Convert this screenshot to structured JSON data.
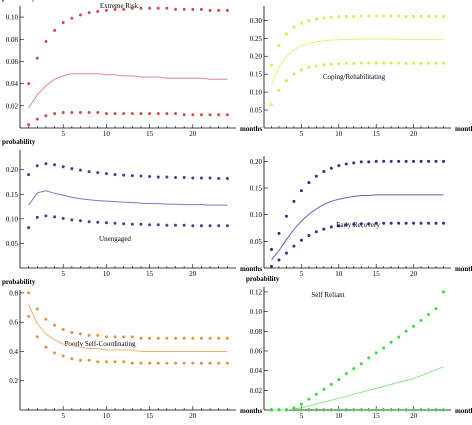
{
  "chart_data": [
    {
      "type": "scatter",
      "title": "Extreme Risk",
      "ylabel": "probability",
      "xlabel": "months",
      "xlim": [
        0,
        25
      ],
      "ylim": [
        0,
        0.11
      ],
      "xticks": [
        5,
        10,
        15,
        20
      ],
      "yticks": [
        0.02,
        0.04,
        0.06,
        0.08,
        0.1
      ],
      "ytick_labels": [
        "0.02",
        "0.04",
        "0.06",
        "0.08",
        "0.10"
      ],
      "color": "#d84a4a",
      "line_color": "#e08888",
      "x": [
        1,
        2,
        3,
        4,
        5,
        6,
        7,
        8,
        9,
        10,
        11,
        12,
        13,
        14,
        15,
        16,
        17,
        18,
        19,
        20,
        21,
        22,
        23,
        24
      ],
      "upper": [
        0.04,
        0.063,
        0.078,
        0.088,
        0.095,
        0.099,
        0.102,
        0.104,
        0.105,
        0.106,
        0.107,
        0.107,
        0.108,
        0.108,
        0.108,
        0.108,
        0.108,
        0.107,
        0.107,
        0.107,
        0.107,
        0.106,
        0.106,
        0.106
      ],
      "mean": [
        0.018,
        0.03,
        0.038,
        0.044,
        0.047,
        0.049,
        0.049,
        0.049,
        0.049,
        0.048,
        0.048,
        0.047,
        0.047,
        0.046,
        0.046,
        0.046,
        0.045,
        0.045,
        0.045,
        0.045,
        0.045,
        0.044,
        0.044,
        0.044
      ],
      "lower": [
        0.003,
        0.008,
        0.011,
        0.013,
        0.014,
        0.014,
        0.014,
        0.014,
        0.014,
        0.013,
        0.013,
        0.013,
        0.013,
        0.013,
        0.013,
        0.013,
        0.013,
        0.013,
        0.012,
        0.012,
        0.012,
        0.012,
        0.012,
        0.012
      ]
    },
    {
      "type": "scatter",
      "title": "Coping/Rehabilitating",
      "ylabel": "",
      "xlabel": "months",
      "xlim": [
        0,
        25
      ],
      "ylim": [
        0,
        0.34
      ],
      "xticks": [
        5,
        10,
        15,
        20
      ],
      "yticks": [
        0.05,
        0.1,
        0.15,
        0.2,
        0.25,
        0.3
      ],
      "ytick_labels": [
        "0.05",
        "0.10",
        "0.15",
        "0.20",
        "0.25",
        "0.30"
      ],
      "color": "#ebe34a",
      "line_color": "#f0ea70",
      "x": [
        1,
        2,
        3,
        4,
        5,
        6,
        7,
        8,
        9,
        10,
        11,
        12,
        13,
        14,
        15,
        16,
        17,
        18,
        19,
        20,
        21,
        22,
        23,
        24
      ],
      "upper": [
        0.175,
        0.23,
        0.262,
        0.281,
        0.292,
        0.299,
        0.304,
        0.307,
        0.309,
        0.31,
        0.311,
        0.311,
        0.312,
        0.312,
        0.312,
        0.312,
        0.312,
        0.312,
        0.311,
        0.311,
        0.311,
        0.311,
        0.311,
        0.311
      ],
      "mean": [
        0.12,
        0.17,
        0.2,
        0.218,
        0.229,
        0.236,
        0.24,
        0.243,
        0.245,
        0.246,
        0.247,
        0.247,
        0.248,
        0.248,
        0.248,
        0.248,
        0.248,
        0.247,
        0.247,
        0.247,
        0.247,
        0.247,
        0.247,
        0.247
      ],
      "lower": [
        0.065,
        0.105,
        0.132,
        0.15,
        0.162,
        0.169,
        0.173,
        0.176,
        0.178,
        0.179,
        0.18,
        0.18,
        0.181,
        0.181,
        0.181,
        0.181,
        0.181,
        0.181,
        0.18,
        0.18,
        0.18,
        0.18,
        0.18,
        0.18
      ]
    },
    {
      "type": "scatter",
      "title": "Unengaged",
      "ylabel": "probability",
      "xlabel": "months",
      "xlim": [
        0,
        25
      ],
      "ylim": [
        0,
        0.24
      ],
      "xticks": [
        5,
        10,
        15,
        20
      ],
      "yticks": [
        0.05,
        0.1,
        0.15,
        0.2
      ],
      "ytick_labels": [
        "0.05",
        "0.10",
        "0.15",
        "0.20"
      ],
      "color": "#4a3a9a",
      "line_color": "#8a6ec8",
      "x": [
        1,
        2,
        3,
        4,
        5,
        6,
        7,
        8,
        9,
        10,
        11,
        12,
        13,
        14,
        15,
        16,
        17,
        18,
        19,
        20,
        21,
        22,
        23,
        24
      ],
      "upper": [
        0.19,
        0.208,
        0.212,
        0.21,
        0.206,
        0.202,
        0.199,
        0.196,
        0.194,
        0.192,
        0.19,
        0.189,
        0.188,
        0.187,
        0.186,
        0.185,
        0.185,
        0.184,
        0.184,
        0.183,
        0.183,
        0.183,
        0.182,
        0.182
      ],
      "mean": [
        0.128,
        0.153,
        0.157,
        0.152,
        0.148,
        0.144,
        0.141,
        0.139,
        0.137,
        0.136,
        0.135,
        0.134,
        0.133,
        0.132,
        0.131,
        0.131,
        0.13,
        0.13,
        0.129,
        0.129,
        0.129,
        0.128,
        0.128,
        0.128
      ],
      "lower": [
        0.082,
        0.103,
        0.106,
        0.104,
        0.101,
        0.098,
        0.096,
        0.094,
        0.093,
        0.092,
        0.091,
        0.09,
        0.089,
        0.089,
        0.088,
        0.088,
        0.087,
        0.087,
        0.087,
        0.086,
        0.086,
        0.086,
        0.086,
        0.086
      ]
    },
    {
      "type": "scatter",
      "title": "Early Recovery",
      "ylabel": "",
      "xlabel": "months",
      "xlim": [
        0,
        25
      ],
      "ylim": [
        0,
        0.21
      ],
      "xticks": [
        5,
        10,
        15,
        20
      ],
      "yticks": [
        0.05,
        0.1,
        0.15,
        0.2
      ],
      "ytick_labels": [
        "0.05",
        "0.10",
        "0.15",
        "0.20"
      ],
      "color": "#2e2e8a",
      "line_color": "#6a5ec0",
      "x": [
        1,
        2,
        3,
        4,
        5,
        6,
        7,
        8,
        9,
        10,
        11,
        12,
        13,
        14,
        15,
        16,
        17,
        18,
        19,
        20,
        21,
        22,
        23,
        24
      ],
      "upper": [
        0.035,
        0.065,
        0.097,
        0.125,
        0.145,
        0.16,
        0.172,
        0.181,
        0.187,
        0.192,
        0.195,
        0.197,
        0.199,
        0.199,
        0.2,
        0.2,
        0.2,
        0.2,
        0.2,
        0.2,
        0.2,
        0.2,
        0.2,
        0.2
      ],
      "mean": [
        0.015,
        0.033,
        0.053,
        0.072,
        0.088,
        0.101,
        0.111,
        0.119,
        0.125,
        0.129,
        0.132,
        0.134,
        0.136,
        0.136,
        0.137,
        0.137,
        0.137,
        0.137,
        0.137,
        0.137,
        0.137,
        0.137,
        0.137,
        0.137
      ],
      "lower": [
        0.003,
        0.015,
        0.028,
        0.041,
        0.052,
        0.061,
        0.068,
        0.073,
        0.077,
        0.079,
        0.081,
        0.082,
        0.083,
        0.083,
        0.084,
        0.084,
        0.084,
        0.084,
        0.084,
        0.084,
        0.084,
        0.084,
        0.084,
        0.084
      ]
    },
    {
      "type": "scatter",
      "title": "Poorly Self-Coordinating",
      "ylabel": "probability",
      "xlabel": "months",
      "xlim": [
        0,
        25
      ],
      "ylim": [
        0,
        0.82
      ],
      "xticks": [
        5,
        10,
        15,
        20
      ],
      "yticks": [
        0.2,
        0.4,
        0.6,
        0.8
      ],
      "ytick_labels": [
        "0.2",
        "0.4",
        "0.6",
        "0.8"
      ],
      "color": "#e8903a",
      "line_color": "#f0b070",
      "x": [
        1,
        2,
        3,
        4,
        5,
        6,
        7,
        8,
        9,
        10,
        11,
        12,
        13,
        14,
        15,
        16,
        17,
        18,
        19,
        20,
        21,
        22,
        23,
        24
      ],
      "upper": [
        0.8,
        0.69,
        0.62,
        0.58,
        0.55,
        0.53,
        0.52,
        0.51,
        0.51,
        0.5,
        0.5,
        0.5,
        0.5,
        0.49,
        0.49,
        0.49,
        0.49,
        0.49,
        0.49,
        0.49,
        0.49,
        0.49,
        0.49,
        0.49
      ],
      "mean": [
        0.72,
        0.59,
        0.52,
        0.48,
        0.45,
        0.44,
        0.43,
        0.42,
        0.42,
        0.41,
        0.41,
        0.41,
        0.41,
        0.4,
        0.4,
        0.4,
        0.4,
        0.4,
        0.4,
        0.4,
        0.4,
        0.4,
        0.4,
        0.4
      ],
      "lower": [
        0.64,
        0.5,
        0.43,
        0.39,
        0.37,
        0.35,
        0.34,
        0.34,
        0.33,
        0.33,
        0.33,
        0.33,
        0.32,
        0.32,
        0.32,
        0.32,
        0.32,
        0.32,
        0.32,
        0.32,
        0.32,
        0.32,
        0.32,
        0.32
      ]
    },
    {
      "type": "scatter",
      "title": "Self Reliant",
      "ylabel": "probability",
      "xlabel": "months",
      "xlim": [
        0,
        25
      ],
      "ylim": [
        0,
        0.125
      ],
      "xticks": [
        5,
        10,
        15,
        20
      ],
      "yticks": [
        0.02,
        0.04,
        0.06,
        0.08,
        0.1,
        0.12
      ],
      "ytick_labels": [
        "0.02",
        "0.04",
        "0.06",
        "0.08",
        "0.10",
        "0.12"
      ],
      "color": "#3ada3a",
      "line_color": "#8ae88a",
      "x": [
        1,
        2,
        3,
        4,
        5,
        6,
        7,
        8,
        9,
        10,
        11,
        12,
        13,
        14,
        15,
        16,
        17,
        18,
        19,
        20,
        21,
        22,
        23,
        24
      ],
      "upper": [
        0.0,
        0.0,
        0.0,
        0.002,
        0.006,
        0.011,
        0.016,
        0.021,
        0.026,
        0.031,
        0.037,
        0.042,
        0.047,
        0.053,
        0.058,
        0.063,
        0.069,
        0.074,
        0.08,
        0.085,
        0.091,
        0.097,
        0.103,
        0.12
      ],
      "mean": [
        0.0,
        0.0,
        0.0,
        0.001,
        0.002,
        0.004,
        0.006,
        0.008,
        0.01,
        0.012,
        0.014,
        0.016,
        0.018,
        0.02,
        0.022,
        0.024,
        0.026,
        0.028,
        0.03,
        0.032,
        0.035,
        0.038,
        0.041,
        0.044
      ],
      "lower": [
        0,
        0,
        0,
        0,
        0,
        0,
        0,
        0,
        0,
        0,
        0,
        0,
        0,
        0,
        0,
        0,
        0,
        0,
        0,
        0,
        0,
        0,
        0,
        0
      ]
    }
  ]
}
